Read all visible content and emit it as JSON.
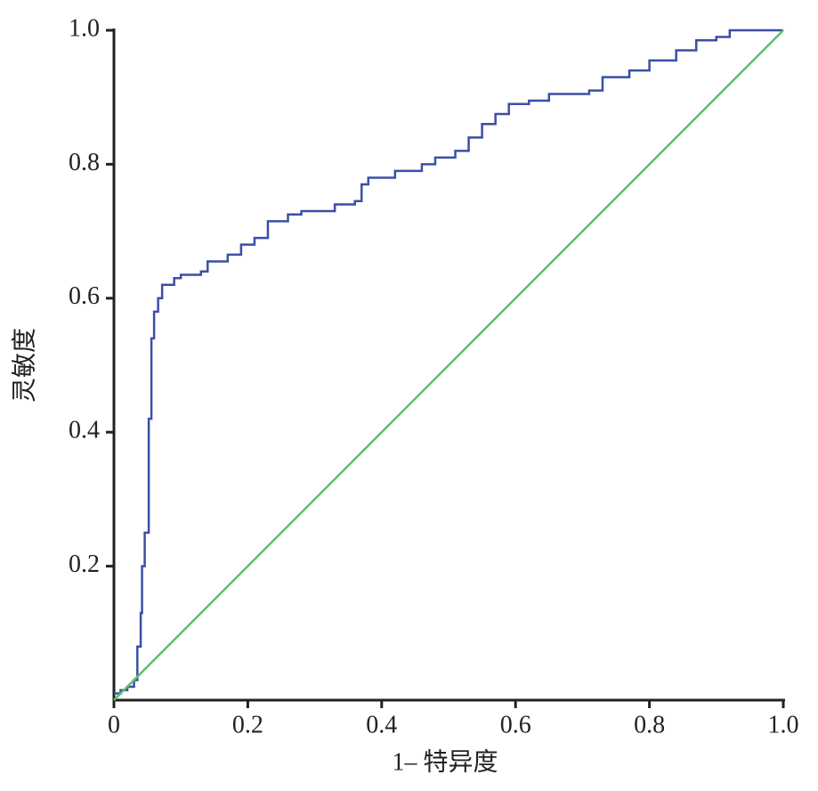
{
  "chart_data": {
    "type": "line",
    "x_label": "1– 特异度",
    "y_label": "灵敏度",
    "xlim": [
      0,
      1
    ],
    "ylim": [
      0,
      1
    ],
    "xticks": [
      0,
      0.2,
      0.4,
      0.6,
      0.8,
      {
        "value": 1,
        "label": "1.0"
      }
    ],
    "yticks": [
      0.2,
      0.4,
      0.6,
      0.8,
      {
        "value": 1,
        "label": "1.0"
      }
    ],
    "grid": false,
    "series": [
      {
        "color": "#3b4fa6",
        "step": true,
        "x": [
          0,
          0.01,
          0.02,
          0.03,
          0.035,
          0.04,
          0.042,
          0.046,
          0.052,
          0.056,
          0.06,
          0.066,
          0.072,
          0.09,
          0.1,
          0.13,
          0.14,
          0.17,
          0.19,
          0.21,
          0.23,
          0.26,
          0.28,
          0.33,
          0.36,
          0.37,
          0.38,
          0.42,
          0.46,
          0.48,
          0.51,
          0.53,
          0.55,
          0.57,
          0.59,
          0.62,
          0.65,
          0.71,
          0.73,
          0.77,
          0.8,
          0.84,
          0.87,
          0.9,
          0.92,
          1
        ],
        "values": [
          0.01,
          0.015,
          0.02,
          0.03,
          0.08,
          0.13,
          0.2,
          0.25,
          0.42,
          0.54,
          0.58,
          0.6,
          0.62,
          0.63,
          0.635,
          0.64,
          0.655,
          0.665,
          0.68,
          0.69,
          0.715,
          0.725,
          0.73,
          0.74,
          0.745,
          0.77,
          0.78,
          0.79,
          0.8,
          0.81,
          0.82,
          0.84,
          0.86,
          0.875,
          0.89,
          0.895,
          0.905,
          0.91,
          0.93,
          0.94,
          0.955,
          0.97,
          0.985,
          0.99,
          1,
          1
        ]
      },
      {
        "color": "#5cbf6a",
        "step": false,
        "x": [
          0,
          1
        ],
        "values": [
          0,
          1
        ]
      }
    ]
  }
}
